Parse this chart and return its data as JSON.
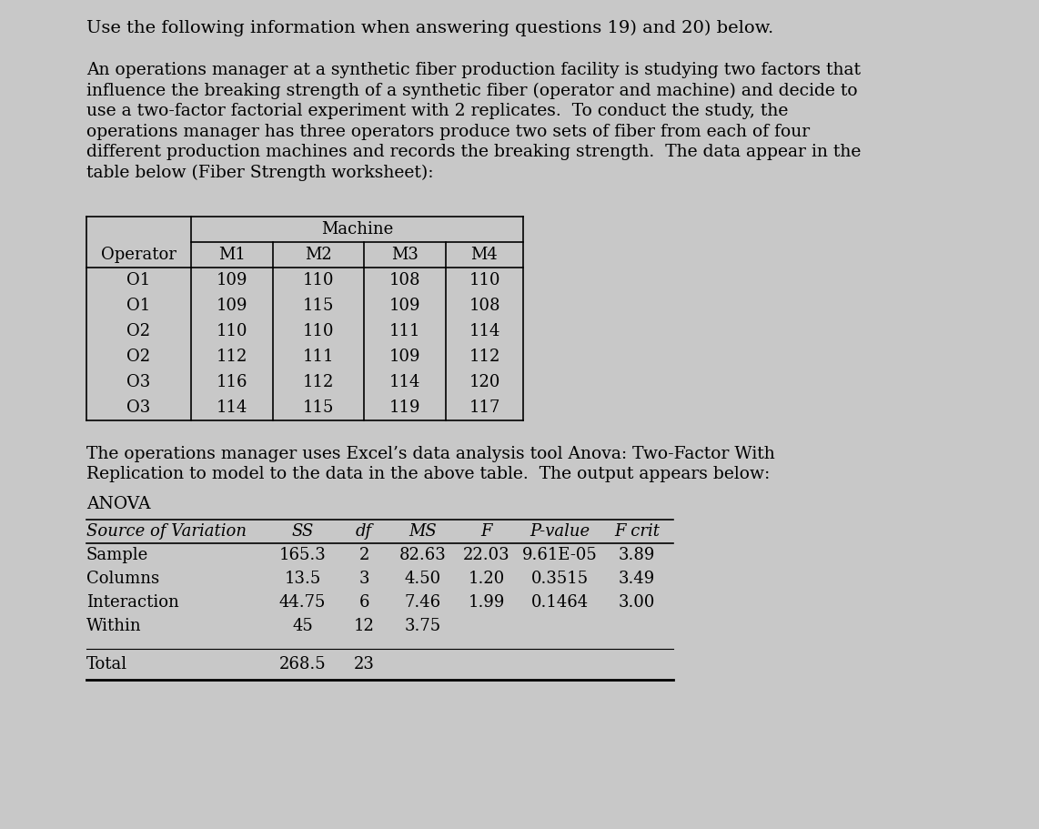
{
  "bg_color": "#c8c8c8",
  "title_line1": "Use the following information when answering questions 19) and 20) below.",
  "paragraph_lines": [
    "An operations manager at a synthetic fiber production facility is studying two factors that",
    "influence the breaking strength of a synthetic fiber (operator and machine) and decide to",
    "use a two-factor factorial experiment with 2 replicates.  To conduct the study, the",
    "operations manager has three operators produce two sets of fiber from each of four",
    "different production machines and records the breaking strength.  The data appear in the",
    "table below (Fiber Strength worksheet):"
  ],
  "fiber_table": {
    "header_row": [
      "Operator",
      "M1",
      "M2",
      "M3",
      "M4"
    ],
    "rows": [
      [
        "O1",
        "109",
        "110",
        "108",
        "110"
      ],
      [
        "O1",
        "109",
        "115",
        "109",
        "108"
      ],
      [
        "O2",
        "110",
        "110",
        "111",
        "114"
      ],
      [
        "O2",
        "112",
        "111",
        "109",
        "112"
      ],
      [
        "O3",
        "116",
        "112",
        "114",
        "120"
      ],
      [
        "O3",
        "114",
        "115",
        "119",
        "117"
      ]
    ]
  },
  "middle_text_lines": [
    "The operations manager uses Excel’s data analysis tool Anova: Two-Factor With",
    "Replication to model to the data in the above table.  The output appears below:"
  ],
  "anova_label": "ANOVA",
  "anova_header": [
    "Source of Variation",
    "SS",
    "df",
    "MS",
    "F",
    "P-value",
    "F crit"
  ],
  "anova_rows": [
    [
      "Sample",
      "165.3",
      "2",
      "82.63",
      "22.03",
      "9.61E-05",
      "3.89"
    ],
    [
      "Columns",
      "13.5",
      "3",
      "4.50",
      "1.20",
      "0.3515",
      "3.49"
    ],
    [
      "Interaction",
      "44.75",
      "6",
      "7.46",
      "1.99",
      "0.1464",
      "3.00"
    ],
    [
      "Within",
      "45",
      "12",
      "3.75",
      "",
      "",
      ""
    ]
  ],
  "anova_total": [
    "Total",
    "268.5",
    "23",
    "",
    "",
    "",
    ""
  ],
  "font_size_title": 14,
  "font_size_body": 13.5,
  "font_size_table": 13,
  "font_size_anova": 13
}
